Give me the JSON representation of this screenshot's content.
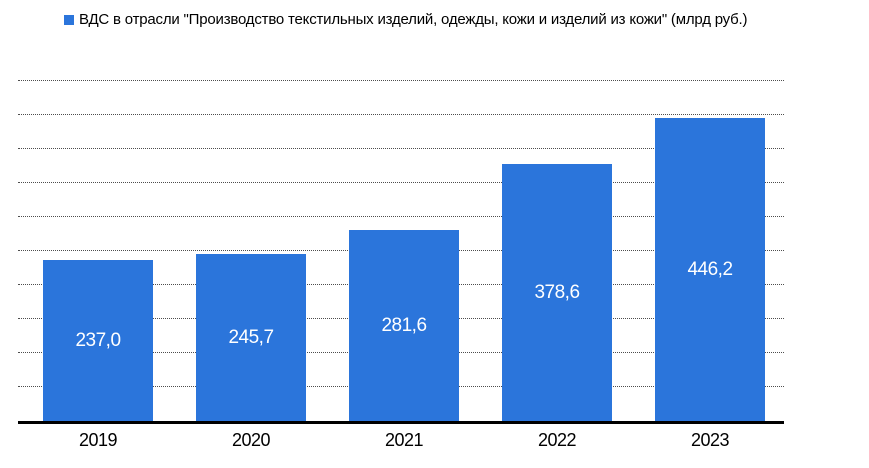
{
  "chart_data": {
    "type": "bar",
    "legend": "ВДС в отрасли \"Производство текстильных изделий, одежды, кожи и изделий из кожи\" (млрд руб.)",
    "legend_position": "top",
    "categories": [
      "2019",
      "2020",
      "2021",
      "2022",
      "2023"
    ],
    "series": [
      {
        "name": "ВДС в отрасли \"Производство текстильных изделий, одежды, кожи и изделий из кожи\" (млрд руб.)",
        "values": [
          237.0,
          245.7,
          281.6,
          378.6,
          446.2
        ],
        "data_labels": [
          "237,0",
          "245,7",
          "281,6",
          "378,6",
          "446,2"
        ],
        "data_label_position": "inside-center"
      }
    ],
    "xlabel": "",
    "ylabel": "",
    "ylim": [
      0,
      500
    ],
    "gridline_step": 50,
    "grid": "horizontal-dotted",
    "y_axis_labels_visible": false,
    "colors": {
      "bar": "#2B75DB",
      "data_label": "#ffffff",
      "axis_line": "#000000",
      "gridline": "#4d4d4d",
      "text": "#000000",
      "background": "#ffffff"
    }
  }
}
